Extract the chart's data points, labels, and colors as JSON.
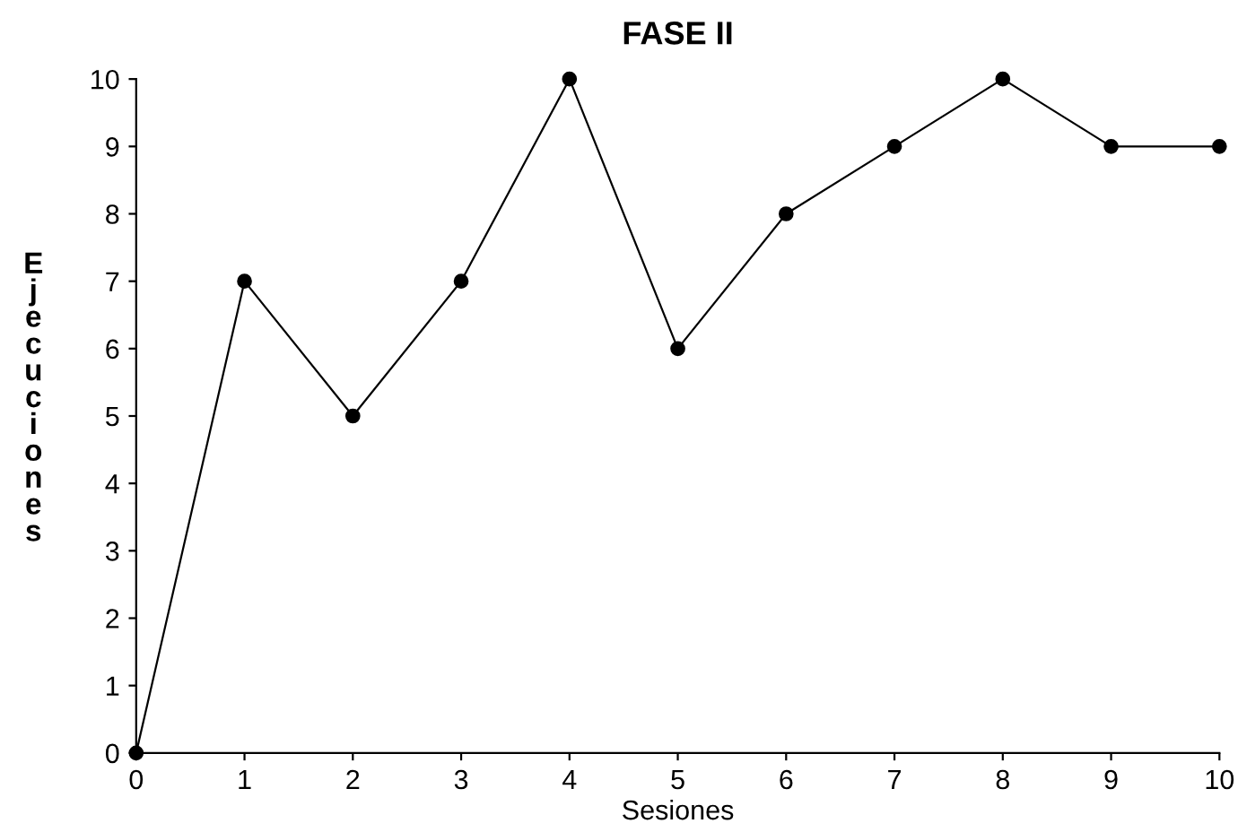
{
  "chart_data": {
    "type": "line",
    "title": "FASE II",
    "xlabel": "Sesiones",
    "ylabel": "Ejecuciones",
    "x": [
      0,
      1,
      2,
      3,
      4,
      5,
      6,
      7,
      8,
      9,
      10
    ],
    "series": [
      {
        "color": "#000000",
        "values": [
          0,
          7,
          5,
          7,
          10,
          6,
          8,
          9,
          10,
          9,
          9
        ]
      }
    ],
    "xlim": [
      0,
      10
    ],
    "ylim": [
      0,
      10
    ],
    "xticks": [
      0,
      1,
      2,
      3,
      4,
      5,
      6,
      7,
      8,
      9,
      10
    ],
    "yticks": [
      0,
      1,
      2,
      3,
      4,
      5,
      6,
      7,
      8,
      9,
      10
    ],
    "grid": false,
    "legend": false,
    "marker": "circle",
    "line_style": "solid"
  }
}
